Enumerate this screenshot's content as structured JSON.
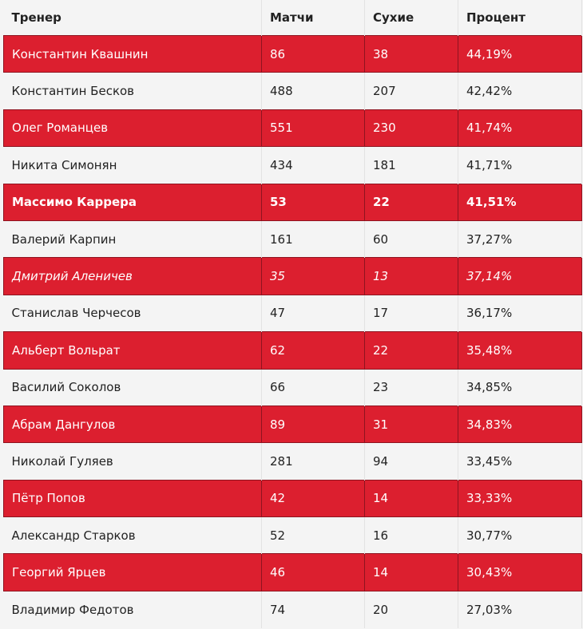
{
  "headers": [
    "Тренер",
    "Матчи",
    "Сухие",
    "Процент"
  ],
  "rows": [
    {
      "name": "Константин Квашнин",
      "matches": "86",
      "clean": "38",
      "pct": "44,19%",
      "style": "red"
    },
    {
      "name": "Константин Бесков",
      "matches": "488",
      "clean": "207",
      "pct": "42,42%",
      "style": "plain"
    },
    {
      "name": "Олег Романцев",
      "matches": "551",
      "clean": "230",
      "pct": "41,74%",
      "style": "red"
    },
    {
      "name": "Никита Симонян",
      "matches": "434",
      "clean": "181",
      "pct": "41,71%",
      "style": "plain"
    },
    {
      "name": "Массимо Каррера",
      "matches": "53",
      "clean": "22",
      "pct": "41,51%",
      "style": "red bold"
    },
    {
      "name": "Валерий Карпин",
      "matches": "161",
      "clean": "60",
      "pct": "37,27%",
      "style": "plain"
    },
    {
      "name": "Дмитрий Аленичев",
      "matches": "35",
      "clean": "13",
      "pct": "37,14%",
      "style": "red italic"
    },
    {
      "name": "Станислав Черчесов",
      "matches": "47",
      "clean": "17",
      "pct": "36,17%",
      "style": "plain"
    },
    {
      "name": "Альберт Вольрат",
      "matches": "62",
      "clean": "22",
      "pct": "35,48%",
      "style": "red"
    },
    {
      "name": "Василий Соколов",
      "matches": "66",
      "clean": "23",
      "pct": "34,85%",
      "style": "plain"
    },
    {
      "name": "Абрам Дангулов",
      "matches": "89",
      "clean": "31",
      "pct": "34,83%",
      "style": "red"
    },
    {
      "name": "Николай Гуляев",
      "matches": "281",
      "clean": "94",
      "pct": "33,45%",
      "style": "plain"
    },
    {
      "name": "Пётр Попов",
      "matches": "42",
      "clean": "14",
      "pct": "33,33%",
      "style": "red"
    },
    {
      "name": "Александр Старков",
      "matches": "52",
      "clean": "16",
      "pct": "30,77%",
      "style": "plain"
    },
    {
      "name": "Георгий Ярцев",
      "matches": "46",
      "clean": "14",
      "pct": "30,43%",
      "style": "red"
    },
    {
      "name": "Владимир Федотов",
      "matches": "74",
      "clean": "20",
      "pct": "27,03%",
      "style": "plain"
    }
  ],
  "colors": {
    "highlight": "#dc1f2f",
    "plain": "#f4f4f4"
  }
}
